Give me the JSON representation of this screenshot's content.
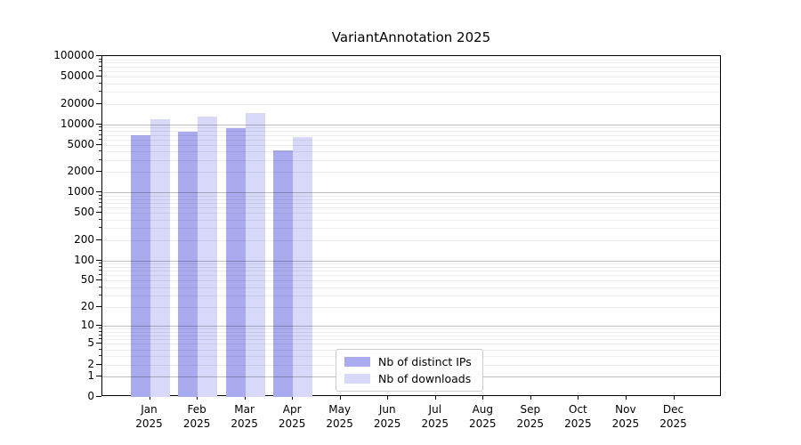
{
  "chart_data": {
    "type": "bar",
    "title": "VariantAnnotation 2025",
    "year": "2025",
    "months": [
      "Jan",
      "Feb",
      "Mar",
      "Apr",
      "May",
      "Jun",
      "Jul",
      "Aug",
      "Sep",
      "Oct",
      "Nov",
      "Dec"
    ],
    "categories": [
      "Jan 2025",
      "Feb 2025",
      "Mar 2025",
      "Apr 2025",
      "May 2025",
      "Jun 2025",
      "Jul 2025",
      "Aug 2025",
      "Sep 2025",
      "Oct 2025",
      "Nov 2025",
      "Dec 2025"
    ],
    "series": [
      {
        "name": "Nb of distinct IPs",
        "color": "#aaaaee",
        "values": [
          6900,
          7700,
          8850,
          4150,
          null,
          null,
          null,
          null,
          null,
          null,
          null,
          null
        ]
      },
      {
        "name": "Nb of downloads",
        "color": "#d8d8f8",
        "values": [
          11800,
          12850,
          14600,
          6450,
          null,
          null,
          null,
          null,
          null,
          null,
          null,
          null
        ]
      }
    ],
    "y_scale": "log(value+1)",
    "ylim": [
      0,
      100000
    ],
    "y_ticks": [
      100000,
      50000,
      20000,
      10000,
      5000,
      2000,
      1000,
      500,
      200,
      100,
      50,
      20,
      10,
      5,
      2,
      1,
      0
    ],
    "grid": true,
    "legend_position": "bottom-center"
  }
}
